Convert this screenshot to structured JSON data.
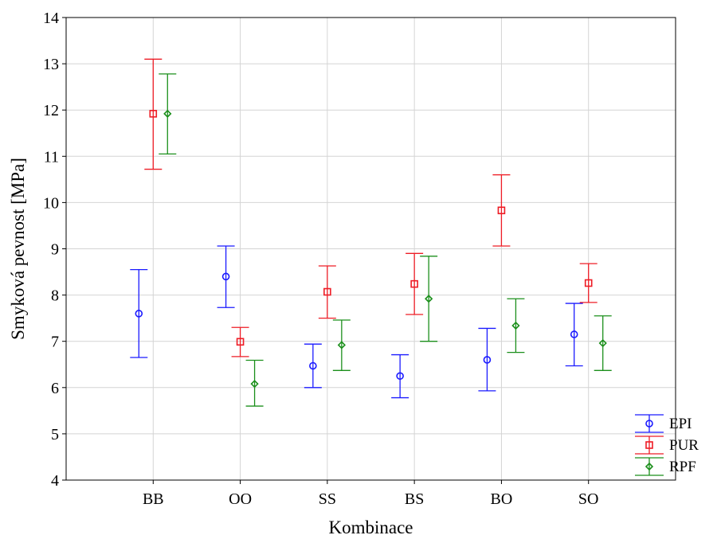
{
  "chart_data": {
    "type": "scatter",
    "xlabel": "Kombinace",
    "ylabel": "Smyková pevnost [MPa]",
    "ylim": [
      4,
      14
    ],
    "yticks": [
      4,
      5,
      6,
      7,
      8,
      9,
      10,
      11,
      12,
      13,
      14
    ],
    "categories": [
      "BB",
      "OO",
      "SS",
      "BS",
      "BO",
      "SO"
    ],
    "grid": true,
    "legend_position": "bottom-right",
    "series": [
      {
        "name": "EPI",
        "color": "#1a1aff",
        "marker": "circle",
        "mean": [
          7.6,
          8.4,
          6.47,
          6.25,
          6.6,
          7.15
        ],
        "lower": [
          6.65,
          7.73,
          6.0,
          5.78,
          5.93,
          6.47
        ],
        "upper": [
          8.55,
          9.06,
          6.94,
          6.71,
          7.28,
          7.82
        ]
      },
      {
        "name": "PUR",
        "color": "#ee1c25",
        "marker": "square",
        "mean": [
          11.92,
          6.99,
          8.07,
          8.24,
          9.83,
          8.26
        ],
        "lower": [
          10.72,
          6.67,
          7.5,
          7.58,
          9.06,
          7.84
        ],
        "upper": [
          13.1,
          7.3,
          8.63,
          8.9,
          10.6,
          8.68
        ]
      },
      {
        "name": "RPF",
        "color": "#1b8f1b",
        "marker": "diamond",
        "mean": [
          11.92,
          6.08,
          6.92,
          7.92,
          7.34,
          6.96
        ],
        "lower": [
          11.05,
          5.6,
          6.37,
          7.0,
          6.76,
          6.37
        ],
        "upper": [
          12.78,
          6.59,
          7.46,
          8.84,
          7.92,
          7.55
        ]
      }
    ]
  }
}
